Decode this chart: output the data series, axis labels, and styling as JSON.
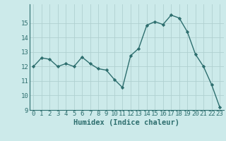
{
  "x": [
    0,
    1,
    2,
    3,
    4,
    5,
    6,
    7,
    8,
    9,
    10,
    11,
    12,
    13,
    14,
    15,
    16,
    17,
    18,
    19,
    20,
    21,
    22,
    23
  ],
  "y": [
    12.0,
    12.6,
    12.5,
    12.0,
    12.2,
    12.0,
    12.65,
    12.2,
    11.85,
    11.75,
    11.1,
    10.55,
    12.75,
    13.25,
    14.85,
    15.1,
    14.9,
    15.55,
    15.35,
    14.4,
    12.85,
    12.0,
    10.75,
    9.2
  ],
  "xlabel": "Humidex (Indice chaleur)",
  "ylim_min": 9,
  "ylim_max": 16,
  "yticks": [
    9,
    10,
    11,
    12,
    13,
    14,
    15
  ],
  "xticks": [
    0,
    1,
    2,
    3,
    4,
    5,
    6,
    7,
    8,
    9,
    10,
    11,
    12,
    13,
    14,
    15,
    16,
    17,
    18,
    19,
    20,
    21,
    22,
    23
  ],
  "xtick_labels": [
    "0",
    "1",
    "2",
    "3",
    "4",
    "5",
    "6",
    "7",
    "8",
    "9",
    "10",
    "11",
    "12",
    "13",
    "14",
    "15",
    "16",
    "17",
    "18",
    "19",
    "20",
    "21",
    "22",
    "23"
  ],
  "line_color": "#2d6e6e",
  "marker": "D",
  "marker_size": 2.2,
  "bg_color": "#cceaea",
  "grid_color": "#b0d0d0",
  "xlabel_fontsize": 7.5,
  "tick_fontsize": 6.5,
  "line_width": 1.0
}
